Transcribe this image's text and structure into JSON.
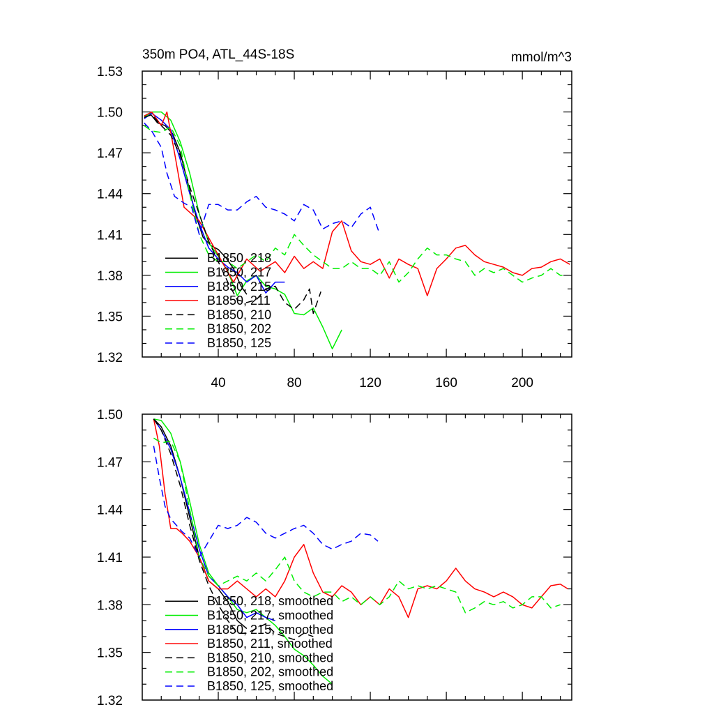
{
  "chart_data": [
    {
      "type": "line",
      "title": "350m PO4, ATL_44S-18S",
      "units_label": "mmol/m^3",
      "xlim": [
        0,
        226
      ],
      "ylim": [
        1.32,
        1.53
      ],
      "x_ticks": [
        40,
        80,
        120,
        160,
        200
      ],
      "x_tick_labels": [
        "40",
        "80",
        "120",
        "160",
        "200"
      ],
      "y_ticks": [
        1.32,
        1.35,
        1.38,
        1.41,
        1.44,
        1.47,
        1.5,
        1.53
      ],
      "y_tick_labels": [
        "1.32",
        "1.35",
        "1.38",
        "1.41",
        "1.44",
        "1.47",
        "1.50",
        "1.53"
      ],
      "legend_position": "bottom-left",
      "series": [
        {
          "name": "B1850, 218",
          "color": "#000000",
          "dash": false,
          "x": [
            1,
            4,
            8,
            12,
            16,
            20,
            24,
            28,
            32,
            36,
            40,
            44,
            48,
            52,
            55
          ],
          "y": [
            1.497,
            1.499,
            1.492,
            1.49,
            1.484,
            1.47,
            1.448,
            1.425,
            1.408,
            1.402,
            1.399,
            1.393,
            1.385,
            1.372,
            1.366
          ]
        },
        {
          "name": "B1850, 217",
          "color": "#00ee00",
          "dash": false,
          "x": [
            1,
            5,
            10,
            15,
            20,
            25,
            30,
            35,
            40,
            45,
            50,
            55,
            60,
            65,
            70,
            75,
            80,
            85,
            90,
            95,
            100,
            105
          ],
          "y": [
            1.496,
            1.5,
            1.5,
            1.494,
            1.478,
            1.455,
            1.425,
            1.404,
            1.394,
            1.383,
            1.365,
            1.376,
            1.38,
            1.372,
            1.37,
            1.366,
            1.352,
            1.351,
            1.356,
            1.342,
            1.326,
            1.34
          ]
        },
        {
          "name": "B1850, 215",
          "color": "#0000ff",
          "dash": false,
          "x": [
            1,
            5,
            10,
            15,
            20,
            25,
            30,
            35,
            40,
            45,
            50,
            55,
            60,
            65,
            70,
            75
          ],
          "y": [
            1.495,
            1.499,
            1.494,
            1.487,
            1.465,
            1.44,
            1.418,
            1.4,
            1.392,
            1.386,
            1.382,
            1.375,
            1.38,
            1.367,
            1.375,
            1.375
          ]
        },
        {
          "name": "B1850, 211",
          "color": "#ff0000",
          "dash": false,
          "x": [
            1,
            5,
            10,
            13,
            17,
            22,
            30,
            40,
            48,
            55,
            62,
            70,
            75,
            80,
            85,
            90,
            95,
            100,
            105,
            110,
            115,
            120,
            125,
            130,
            135,
            140,
            145,
            150,
            155,
            160,
            165,
            170,
            175,
            180,
            185,
            190,
            195,
            200,
            205,
            210,
            215,
            220,
            225
          ],
          "y": [
            1.497,
            1.5,
            1.49,
            1.5,
            1.47,
            1.43,
            1.42,
            1.395,
            1.375,
            1.392,
            1.383,
            1.39,
            1.382,
            1.394,
            1.385,
            1.39,
            1.385,
            1.412,
            1.42,
            1.398,
            1.39,
            1.388,
            1.392,
            1.378,
            1.392,
            1.388,
            1.385,
            1.365,
            1.385,
            1.392,
            1.4,
            1.402,
            1.395,
            1.39,
            1.388,
            1.386,
            1.382,
            1.38,
            1.385,
            1.386,
            1.39,
            1.392,
            1.388
          ]
        },
        {
          "name": "B1850, 210",
          "color": "#000000",
          "dash": true,
          "x": [
            1,
            5,
            10,
            15,
            20,
            25,
            30,
            35,
            40,
            45,
            50,
            55,
            60,
            65,
            70,
            75,
            80,
            85,
            88,
            90,
            94
          ],
          "y": [
            1.496,
            1.498,
            1.49,
            1.483,
            1.468,
            1.445,
            1.425,
            1.405,
            1.39,
            1.375,
            1.362,
            1.36,
            1.362,
            1.37,
            1.372,
            1.36,
            1.355,
            1.362,
            1.37,
            1.352,
            1.368
          ]
        },
        {
          "name": "B1850, 202",
          "color": "#00ee00",
          "dash": true,
          "x": [
            1,
            5,
            10,
            15,
            20,
            25,
            30,
            35,
            40,
            45,
            50,
            55,
            60,
            65,
            70,
            75,
            80,
            85,
            90,
            95,
            100,
            105,
            110,
            115,
            120,
            125,
            130,
            135,
            140,
            145,
            150,
            155,
            160,
            165,
            170,
            175,
            180,
            185,
            190,
            195,
            200,
            205,
            210,
            215,
            220,
            223
          ],
          "y": [
            1.49,
            1.486,
            1.485,
            1.489,
            1.475,
            1.44,
            1.41,
            1.395,
            1.39,
            1.39,
            1.385,
            1.39,
            1.395,
            1.39,
            1.4,
            1.395,
            1.41,
            1.402,
            1.395,
            1.39,
            1.385,
            1.385,
            1.39,
            1.385,
            1.385,
            1.38,
            1.39,
            1.375,
            1.382,
            1.392,
            1.4,
            1.395,
            1.395,
            1.392,
            1.39,
            1.38,
            1.385,
            1.382,
            1.385,
            1.38,
            1.375,
            1.378,
            1.38,
            1.385,
            1.38,
            1.38
          ]
        },
        {
          "name": "B1850, 125",
          "color": "#0000ff",
          "dash": true,
          "x": [
            1,
            5,
            10,
            13,
            17,
            22,
            26,
            30,
            35,
            40,
            45,
            50,
            55,
            60,
            65,
            70,
            75,
            80,
            85,
            90,
            95,
            100,
            105,
            110,
            115,
            120,
            125
          ],
          "y": [
            1.492,
            1.486,
            1.474,
            1.455,
            1.438,
            1.433,
            1.43,
            1.41,
            1.432,
            1.432,
            1.428,
            1.428,
            1.434,
            1.438,
            1.43,
            1.428,
            1.425,
            1.42,
            1.432,
            1.428,
            1.414,
            1.418,
            1.42,
            1.415,
            1.425,
            1.43,
            1.41
          ]
        }
      ]
    },
    {
      "type": "line",
      "xlim": [
        0,
        226
      ],
      "ylim": [
        1.32,
        1.5
      ],
      "y_ticks": [
        1.32,
        1.35,
        1.38,
        1.41,
        1.44,
        1.47,
        1.5
      ],
      "y_tick_labels": [
        "1.32",
        "1.35",
        "1.38",
        "1.41",
        "1.44",
        "1.47",
        "1.50"
      ],
      "legend_position": "bottom-left",
      "series": [
        {
          "name": "B1850, 218, smoothed",
          "color": "#000000",
          "dash": false,
          "x": [
            6,
            10,
            15,
            20,
            25,
            30,
            35,
            40,
            45,
            50,
            55
          ],
          "y": [
            1.497,
            1.492,
            1.48,
            1.46,
            1.435,
            1.41,
            1.395,
            1.39,
            1.382,
            1.37,
            1.365
          ]
        },
        {
          "name": "B1850, 217, smoothed",
          "color": "#00ee00",
          "dash": false,
          "x": [
            6,
            10,
            15,
            20,
            25,
            30,
            35,
            40,
            45,
            50,
            55,
            60,
            65,
            70,
            75,
            80,
            85,
            90,
            95,
            100
          ],
          "y": [
            1.497,
            1.496,
            1.488,
            1.47,
            1.445,
            1.418,
            1.4,
            1.392,
            1.385,
            1.377,
            1.375,
            1.377,
            1.372,
            1.367,
            1.36,
            1.352,
            1.348,
            1.342,
            1.335,
            1.33
          ]
        },
        {
          "name": "B1850, 215, smoothed",
          "color": "#0000ff",
          "dash": false,
          "x": [
            6,
            10,
            15,
            20,
            25,
            30,
            35,
            40,
            45,
            50,
            55,
            60,
            65,
            70
          ],
          "y": [
            1.497,
            1.49,
            1.478,
            1.46,
            1.438,
            1.415,
            1.398,
            1.392,
            1.385,
            1.38,
            1.372,
            1.375,
            1.372,
            1.37
          ]
        },
        {
          "name": "B1850, 211, smoothed",
          "color": "#ff0000",
          "dash": false,
          "x": [
            6,
            9,
            12,
            15,
            18,
            21,
            25,
            30,
            35,
            40,
            45,
            50,
            55,
            60,
            65,
            70,
            75,
            80,
            85,
            90,
            95,
            100,
            105,
            110,
            115,
            120,
            125,
            130,
            135,
            140,
            145,
            150,
            155,
            160,
            165,
            170,
            175,
            180,
            185,
            190,
            195,
            200,
            205,
            210,
            215,
            220,
            224
          ],
          "y": [
            1.497,
            1.48,
            1.45,
            1.428,
            1.428,
            1.425,
            1.42,
            1.41,
            1.395,
            1.39,
            1.39,
            1.395,
            1.39,
            1.385,
            1.39,
            1.385,
            1.395,
            1.41,
            1.418,
            1.4,
            1.388,
            1.385,
            1.392,
            1.388,
            1.38,
            1.385,
            1.38,
            1.39,
            1.385,
            1.372,
            1.39,
            1.392,
            1.39,
            1.395,
            1.403,
            1.395,
            1.39,
            1.388,
            1.385,
            1.388,
            1.385,
            1.38,
            1.378,
            1.385,
            1.392,
            1.393,
            1.39
          ]
        },
        {
          "name": "B1850, 210, smoothed",
          "color": "#000000",
          "dash": true,
          "x": [
            6,
            10,
            15,
            20,
            25,
            30,
            35,
            40,
            45,
            50,
            55,
            60,
            65,
            70,
            75,
            80,
            85,
            90
          ],
          "y": [
            1.497,
            1.49,
            1.475,
            1.455,
            1.43,
            1.408,
            1.392,
            1.38,
            1.37,
            1.362,
            1.362,
            1.365,
            1.368,
            1.362,
            1.36,
            1.358,
            1.362,
            1.36
          ]
        },
        {
          "name": "B1850, 202, smoothed",
          "color": "#00ee00",
          "dash": true,
          "x": [
            6,
            10,
            15,
            20,
            25,
            30,
            35,
            40,
            45,
            50,
            55,
            60,
            65,
            70,
            75,
            80,
            85,
            90,
            95,
            100,
            105,
            110,
            115,
            120,
            125,
            130,
            135,
            140,
            145,
            150,
            155,
            160,
            165,
            170,
            175,
            180,
            185,
            190,
            195,
            200,
            205,
            210,
            215,
            220
          ],
          "y": [
            1.485,
            1.482,
            1.483,
            1.47,
            1.44,
            1.41,
            1.398,
            1.392,
            1.395,
            1.398,
            1.395,
            1.4,
            1.395,
            1.402,
            1.41,
            1.395,
            1.388,
            1.385,
            1.388,
            1.388,
            1.382,
            1.385,
            1.38,
            1.385,
            1.38,
            1.385,
            1.395,
            1.39,
            1.392,
            1.39,
            1.392,
            1.39,
            1.388,
            1.375,
            1.378,
            1.382,
            1.38,
            1.382,
            1.378,
            1.38,
            1.385,
            1.385,
            1.378,
            1.38
          ]
        },
        {
          "name": "B1850, 125, smoothed",
          "color": "#0000ff",
          "dash": true,
          "x": [
            6,
            9,
            12,
            15,
            18,
            21,
            25,
            30,
            35,
            40,
            45,
            50,
            55,
            60,
            65,
            70,
            75,
            80,
            85,
            90,
            95,
            100,
            105,
            110,
            115,
            120,
            124
          ],
          "y": [
            1.48,
            1.46,
            1.442,
            1.434,
            1.43,
            1.426,
            1.422,
            1.41,
            1.42,
            1.43,
            1.428,
            1.43,
            1.435,
            1.432,
            1.425,
            1.422,
            1.425,
            1.428,
            1.43,
            1.425,
            1.418,
            1.415,
            1.418,
            1.42,
            1.425,
            1.424,
            1.42
          ]
        }
      ]
    }
  ]
}
